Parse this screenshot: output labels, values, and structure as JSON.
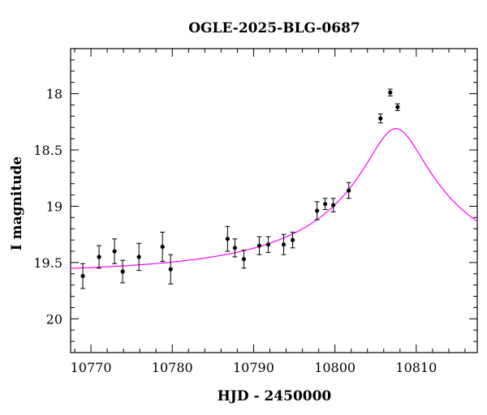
{
  "chart_data": {
    "type": "scatter",
    "title": "OGLE-2025-BLG-0687",
    "xlabel": "HJD - 2450000",
    "ylabel": "I magnitude",
    "xlim": [
      10767.5,
      10817.5
    ],
    "ylim": [
      20.3,
      17.6
    ],
    "y_inverted": true,
    "x_ticks": [
      "10770",
      "10780",
      "10790",
      "10800",
      "10810"
    ],
    "y_ticks": [
      "18",
      "18.5",
      "19",
      "19.5",
      "20"
    ],
    "x_tick_values": [
      10770,
      10780,
      10790,
      10800,
      10810
    ],
    "y_tick_values": [
      18,
      18.5,
      19,
      19.5,
      20
    ],
    "grid": false,
    "series": [
      {
        "kind": "points-with-errorbars",
        "color": "#000000",
        "points": [
          {
            "x": 10769.0,
            "y": 19.62,
            "err": 0.11
          },
          {
            "x": 10771.0,
            "y": 19.45,
            "err": 0.1
          },
          {
            "x": 10772.9,
            "y": 19.4,
            "err": 0.11
          },
          {
            "x": 10773.9,
            "y": 19.58,
            "err": 0.1
          },
          {
            "x": 10775.9,
            "y": 19.45,
            "err": 0.12
          },
          {
            "x": 10778.8,
            "y": 19.36,
            "err": 0.13
          },
          {
            "x": 10779.8,
            "y": 19.56,
            "err": 0.13
          },
          {
            "x": 10786.8,
            "y": 19.29,
            "err": 0.11
          },
          {
            "x": 10787.7,
            "y": 19.37,
            "err": 0.08
          },
          {
            "x": 10788.8,
            "y": 19.47,
            "err": 0.08
          },
          {
            "x": 10790.7,
            "y": 19.35,
            "err": 0.08
          },
          {
            "x": 10791.8,
            "y": 19.34,
            "err": 0.07
          },
          {
            "x": 10793.7,
            "y": 19.34,
            "err": 0.09
          },
          {
            "x": 10794.8,
            "y": 19.3,
            "err": 0.07
          },
          {
            "x": 10797.8,
            "y": 19.04,
            "err": 0.08
          },
          {
            "x": 10798.8,
            "y": 18.98,
            "err": 0.05
          },
          {
            "x": 10799.8,
            "y": 18.99,
            "err": 0.06
          },
          {
            "x": 10801.7,
            "y": 18.86,
            "err": 0.07
          },
          {
            "x": 10805.6,
            "y": 18.22,
            "err": 0.04
          },
          {
            "x": 10806.8,
            "y": 17.99,
            "err": 0.03
          },
          {
            "x": 10807.7,
            "y": 18.12,
            "err": 0.03
          }
        ]
      },
      {
        "kind": "model-curve",
        "color": "#ff00ff",
        "model": {
          "t0": 10807.5,
          "tE": 24.0,
          "u0": 0.14,
          "Is": 20.69,
          "Ib": 20.08
        }
      }
    ]
  }
}
